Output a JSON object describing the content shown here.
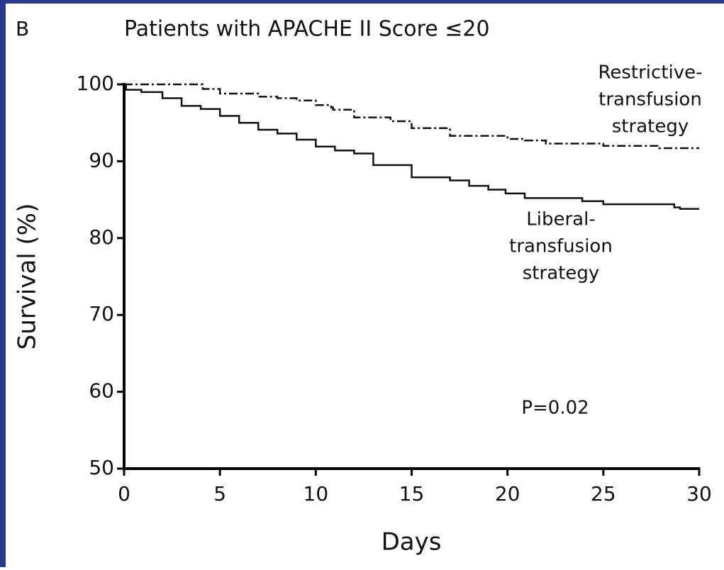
{
  "chart_data": {
    "type": "step",
    "panel_label": "B",
    "title": "Patients with APACHE II Score ≤20",
    "x_label": "Days",
    "y_label": "Survival (%)",
    "annotation": "P=0.02",
    "xlim": [
      0,
      30
    ],
    "ylim": [
      50,
      100
    ],
    "xticks": [
      0,
      5,
      10,
      15,
      20,
      25,
      30
    ],
    "yticks": [
      50,
      60,
      70,
      80,
      90,
      100
    ],
    "grid": false,
    "series": [
      {
        "name": [
          "Restrictive-",
          "transfusion",
          "strategy"
        ],
        "color": "#111111",
        "line_style": "dashdot",
        "x": [
          0,
          4.1,
          5,
          7,
          8,
          9,
          10,
          10.8,
          10.9,
          12,
          13.9,
          15,
          17,
          20,
          20.9,
          22,
          25,
          27.9,
          30
        ],
        "values": [
          100,
          99.4,
          98.8,
          98.4,
          98.2,
          97.9,
          97.3,
          97,
          96.7,
          95.7,
          95.2,
          94.3,
          93.3,
          92.9,
          92.7,
          92.3,
          92,
          91.7,
          91.7
        ]
      },
      {
        "name": [
          "Liberal-",
          "transfusion",
          "strategy"
        ],
        "color": "#111111",
        "line_style": "solid",
        "x": [
          0,
          0.1,
          0.9,
          2,
          3,
          4,
          5,
          6,
          7,
          8,
          9,
          10,
          11,
          12,
          13,
          15,
          17,
          18,
          19,
          19.9,
          20.9,
          23.9,
          25,
          28.7,
          29,
          30
        ],
        "values": [
          100,
          99.3,
          99,
          98.2,
          97.2,
          96.8,
          95.9,
          95,
          94.1,
          93.6,
          92.8,
          91.9,
          91.4,
          91,
          89.5,
          87.9,
          87.5,
          86.8,
          86.3,
          85.8,
          85.2,
          84.8,
          84.4,
          84,
          83.8,
          83.8
        ]
      }
    ]
  }
}
